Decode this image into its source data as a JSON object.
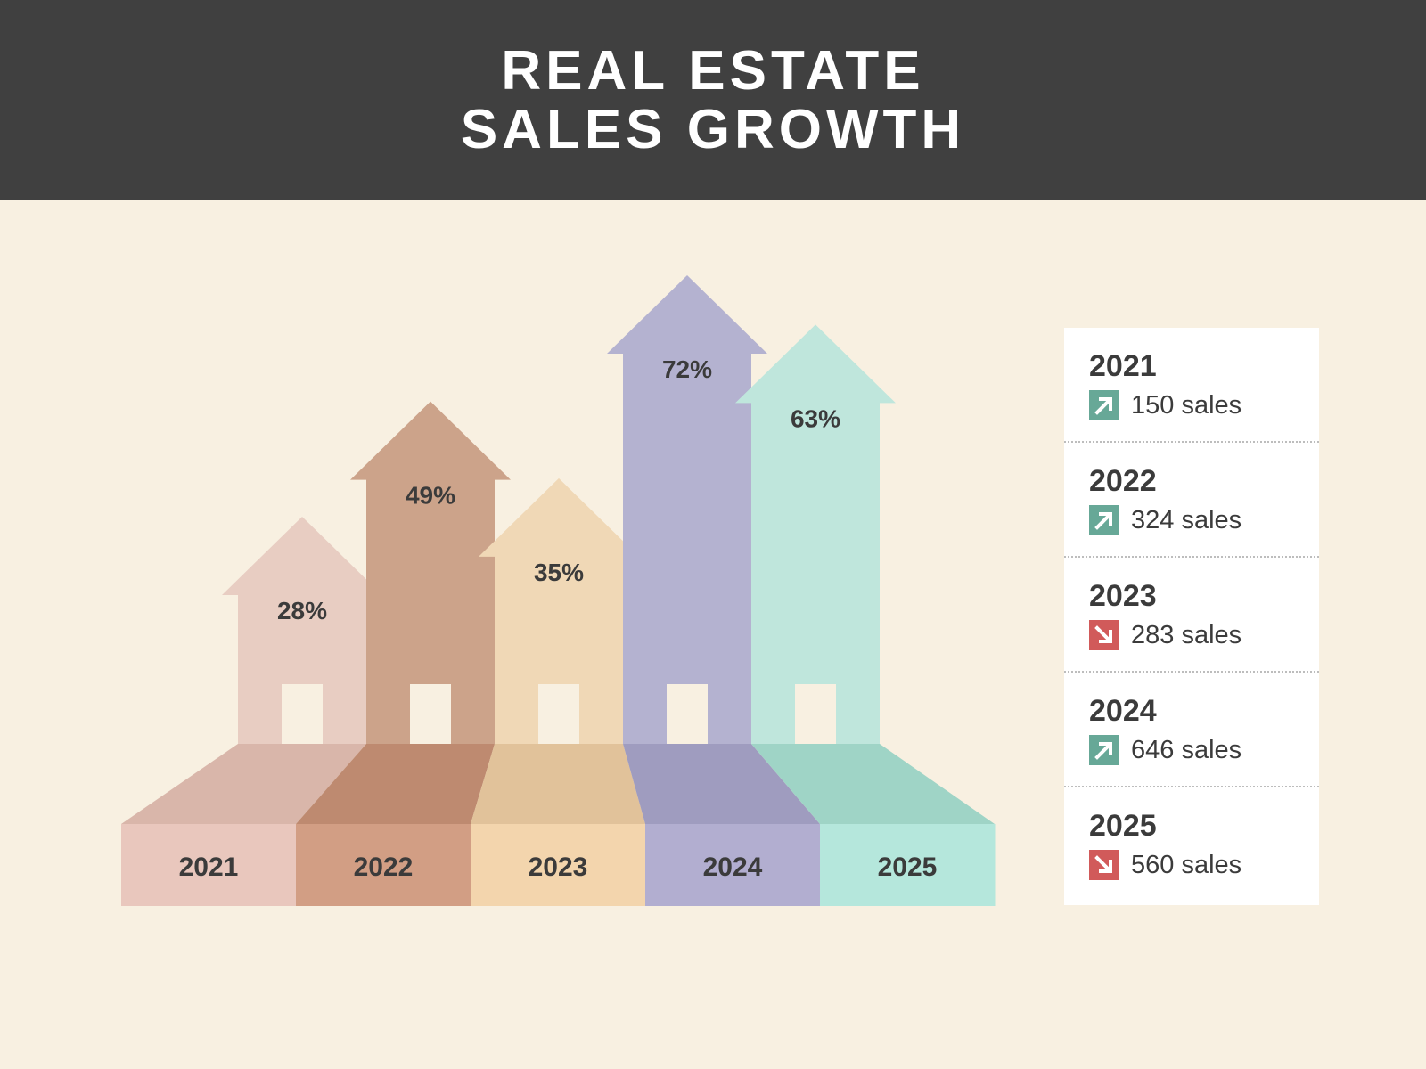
{
  "header": {
    "title_line1": "REAL ESTATE",
    "title_line2": "SALES GROWTH"
  },
  "colors": {
    "background": "#f8f0e1",
    "header_bg": "#404040",
    "up_icon": "#67a897",
    "down_icon": "#d15a5a"
  },
  "chart_data": {
    "type": "bar",
    "title": "REAL ESTATE SALES GROWTH",
    "categories": [
      "2021",
      "2022",
      "2023",
      "2024",
      "2025"
    ],
    "values": [
      28,
      49,
      35,
      72,
      63
    ],
    "value_labels": [
      "28%",
      "49%",
      "35%",
      "72%",
      "63%"
    ],
    "colors": [
      {
        "house": "#e8cdc2",
        "floor": "#d9b6aa",
        "base": "#e9c7bd"
      },
      {
        "house": "#cca38a",
        "floor": "#be8a70",
        "base": "#d29e84"
      },
      {
        "house": "#f0d8b6",
        "floor": "#e1c29a",
        "base": "#f3d5ad"
      },
      {
        "house": "#b4b2d0",
        "floor": "#9f9cbf",
        "base": "#b2aed0"
      },
      {
        "house": "#bfe6dc",
        "floor": "#9fd4c6",
        "base": "#b5e7dc"
      }
    ]
  },
  "legend": {
    "items": [
      {
        "year": "2021",
        "sales": "150 sales",
        "trend": "up",
        "icon": "arrow-up-right-icon"
      },
      {
        "year": "2022",
        "sales": "324 sales",
        "trend": "up",
        "icon": "arrow-up-right-icon"
      },
      {
        "year": "2023",
        "sales": "283 sales",
        "trend": "down",
        "icon": "arrow-down-right-icon"
      },
      {
        "year": "2024",
        "sales": "646 sales",
        "trend": "up",
        "icon": "arrow-up-right-icon"
      },
      {
        "year": "2025",
        "sales": "560 sales",
        "trend": "down",
        "icon": "arrow-down-right-icon"
      }
    ]
  }
}
